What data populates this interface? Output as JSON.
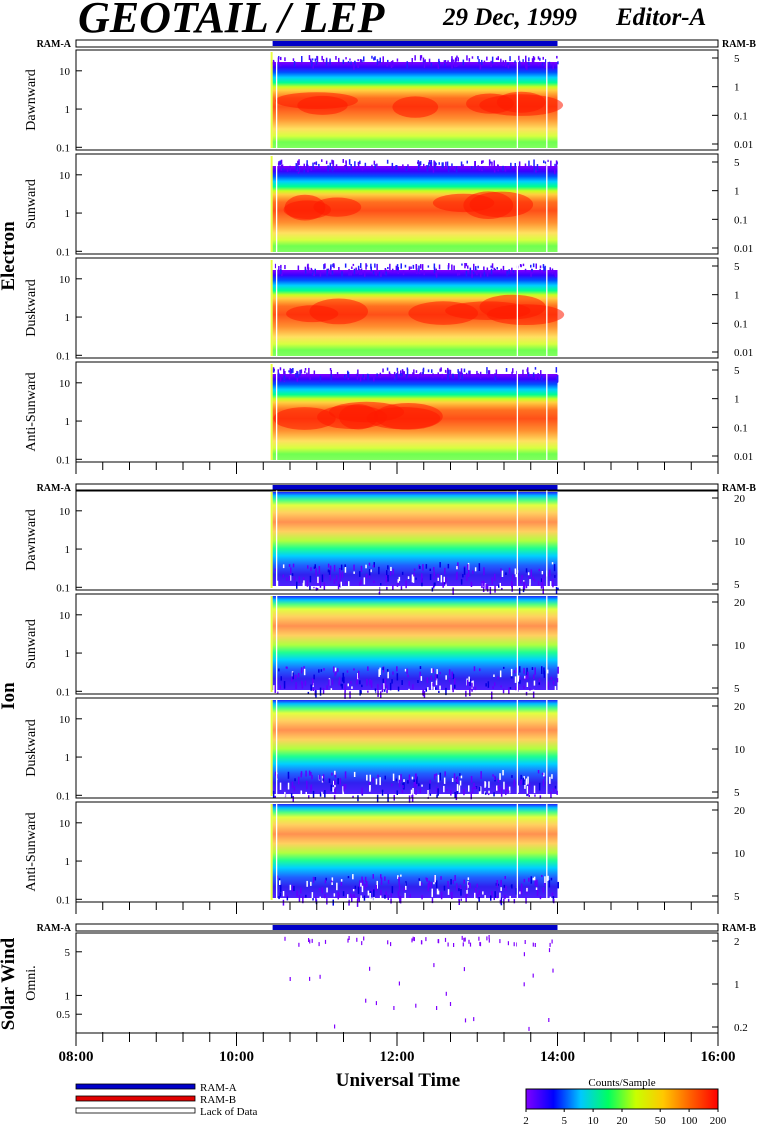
{
  "header": {
    "title": "GEOTAIL / LEP",
    "date": "29 Dec, 1999",
    "editor": "Editor-A"
  },
  "colors": {
    "ram_a": "#0000c8",
    "ram_b": "#e00000",
    "spectrum": [
      "#8000ff",
      "#0000ff",
      "#00c8ff",
      "#00ff60",
      "#c8ff00",
      "#ffc800",
      "#ff6000",
      "#ff0000"
    ]
  },
  "sections": {
    "electron": "Electron",
    "ion": "Ion",
    "solar_wind": "Solar Wind"
  },
  "ram_labels": {
    "a": "RAM-A",
    "b": "RAM-B"
  },
  "chart_data": {
    "type": "heatmap",
    "xlabel": "Universal Time",
    "x_ticks": [
      "08:00",
      "10:00",
      "12:00",
      "14:00",
      "16:00"
    ],
    "xlim": [
      "08:00",
      "16:00"
    ],
    "data_coverage": [
      "10:27",
      "14:00"
    ],
    "data_gap_lines": [
      "10:30",
      "13:30",
      "13:52"
    ],
    "colorbar": {
      "label": "Counts/Sample",
      "ticks": [
        "2",
        "5",
        "10",
        "20",
        "50",
        "100",
        "200"
      ],
      "range": [
        2,
        200
      ],
      "scale": "log"
    },
    "legend": [
      {
        "label": "RAM-A",
        "color": "#0000c8"
      },
      {
        "label": "RAM-B",
        "color": "#e00000"
      },
      {
        "label": "Lack of Data",
        "color": "#ffffff"
      }
    ],
    "panels": [
      {
        "group": "electron",
        "label": "Dawnward",
        "left_ticks": [
          "10",
          "1",
          "0.1"
        ],
        "right_ticks": [
          "5",
          "1",
          "0.1",
          "0.01"
        ]
      },
      {
        "group": "electron",
        "label": "Sunward",
        "left_ticks": [
          "10",
          "1",
          "0.1"
        ],
        "right_ticks": [
          "5",
          "1",
          "0.1",
          "0.01"
        ]
      },
      {
        "group": "electron",
        "label": "Duskward",
        "left_ticks": [
          "10",
          "1",
          "0.1"
        ],
        "right_ticks": [
          "5",
          "1",
          "0.1",
          "0.01"
        ]
      },
      {
        "group": "electron",
        "label": "Anti-Sunward",
        "left_ticks": [
          "10",
          "1",
          "0.1"
        ],
        "right_ticks": [
          "5",
          "1",
          "0.1",
          "0.01"
        ]
      },
      {
        "group": "ion",
        "label": "Dawnward",
        "left_ticks": [
          "10",
          "1",
          "0.1"
        ],
        "right_ticks": [
          "20",
          "10",
          "5"
        ]
      },
      {
        "group": "ion",
        "label": "Sunward",
        "left_ticks": [
          "10",
          "1",
          "0.1"
        ],
        "right_ticks": [
          "20",
          "10",
          "5"
        ]
      },
      {
        "group": "ion",
        "label": "Duskward",
        "left_ticks": [
          "10",
          "1",
          "0.1"
        ],
        "right_ticks": [
          "20",
          "10",
          "5"
        ]
      },
      {
        "group": "ion",
        "label": "Anti-Sunward",
        "left_ticks": [
          "10",
          "1",
          "0.1"
        ],
        "right_ticks": [
          "20",
          "10",
          "5"
        ]
      },
      {
        "group": "solar_wind",
        "label": "Omni.",
        "left_ticks": [
          "5",
          "1",
          "0.5"
        ],
        "right_ticks": [
          "2",
          "1",
          "0.2"
        ]
      }
    ]
  }
}
